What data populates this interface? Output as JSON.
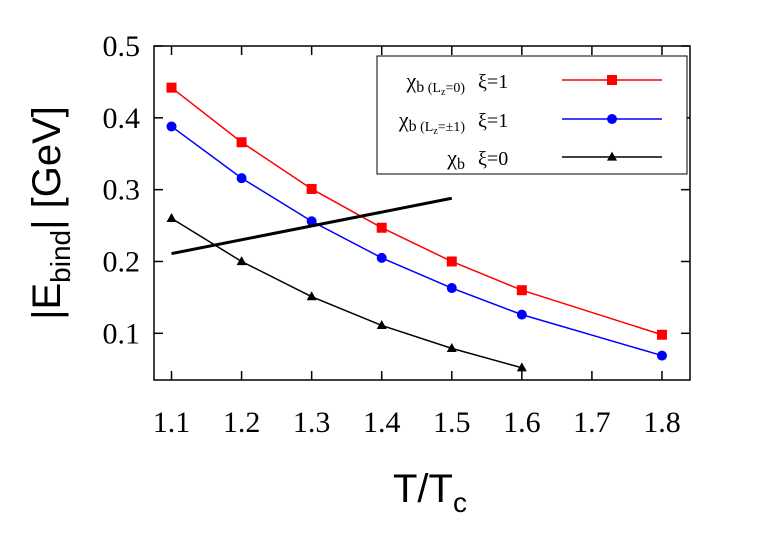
{
  "chart_data": {
    "type": "line",
    "xlabel": {
      "main": "T/T",
      "sub": "c"
    },
    "ylabel": {
      "pre": "|E",
      "sub": "bind",
      "post": "|  [GeV]"
    },
    "xlim": [
      1.075,
      1.84
    ],
    "ylim": [
      0.035,
      0.5
    ],
    "xticks": [
      "1.1",
      "1.2",
      "1.3",
      "1.4",
      "1.5",
      "1.6",
      "1.7",
      "1.8"
    ],
    "yticks": [
      "0.1",
      "0.2",
      "0.3",
      "0.4",
      "0.5"
    ],
    "grid": false,
    "legend_position": "top-right",
    "series": [
      {
        "legend": {
          "chi": "χ",
          "sub": "b",
          "cond": "(L",
          "cond_sub": "z",
          "cond_rest": "=0)",
          "xi": "ξ=1"
        },
        "color": "#ff0000",
        "marker": "square",
        "x": [
          1.1,
          1.2,
          1.3,
          1.4,
          1.5,
          1.6,
          1.8
        ],
        "y": [
          0.442,
          0.366,
          0.301,
          0.247,
          0.2,
          0.16,
          0.098
        ]
      },
      {
        "legend": {
          "chi": "χ",
          "sub": "b",
          "cond": "(L",
          "cond_sub": "z",
          "cond_rest": "=±1)",
          "xi": "ξ=1"
        },
        "color": "#0000ff",
        "marker": "circle",
        "x": [
          1.1,
          1.2,
          1.3,
          1.4,
          1.5,
          1.6,
          1.8
        ],
        "y": [
          0.388,
          0.316,
          0.256,
          0.205,
          0.163,
          0.126,
          0.069
        ]
      },
      {
        "legend": {
          "chi": "χ",
          "sub": "b",
          "cond": "",
          "cond_sub": "",
          "cond_rest": "",
          "xi": "ξ=0"
        },
        "color": "#000000",
        "marker": "triangle",
        "x": [
          1.1,
          1.2,
          1.3,
          1.4,
          1.5,
          1.6
        ],
        "y": [
          0.26,
          0.2,
          0.151,
          0.111,
          0.079,
          0.052
        ]
      }
    ],
    "annotations": [
      {
        "type": "line",
        "x": [
          1.1,
          1.5
        ],
        "y": [
          0.211,
          0.288
        ],
        "color": "#000000"
      }
    ]
  }
}
